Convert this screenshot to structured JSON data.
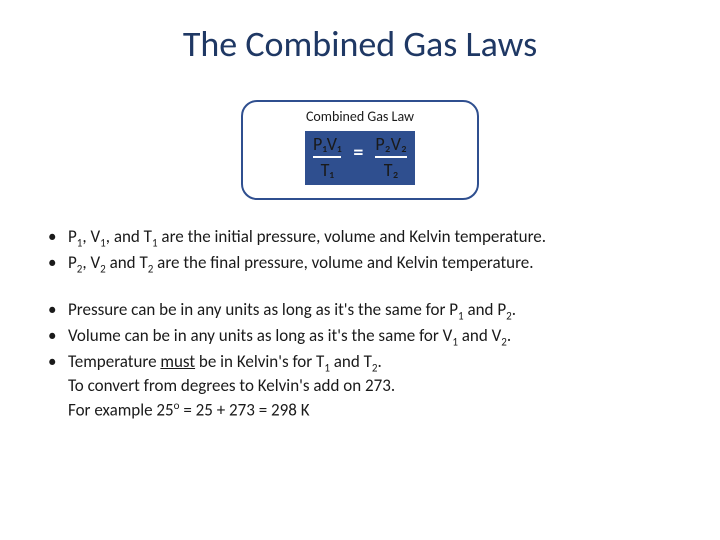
{
  "title": "The Combined Gas Laws",
  "box": {
    "label": "Combined Gas Law",
    "lhs_num": "P₁V₁",
    "lhs_den": "T₁",
    "eq": "=",
    "rhs_num": "P₂V₂",
    "rhs_den": "T₂",
    "border_color": "#2f4f8f",
    "fill_color": "#2f4f8f",
    "text_color": "#ffffff"
  },
  "group1": {
    "b1_pre": "P",
    "b1_s1": "1",
    "b1_mid1": ", V",
    "b1_s2": "1",
    "b1_mid2": ", and T",
    "b1_s3": "1",
    "b1_post": " are the initial pressure, volume and Kelvin temperature.",
    "b2_pre": "P",
    "b2_s1": "2",
    "b2_mid1": ", V",
    "b2_s2": "2",
    "b2_mid2": " and T",
    "b2_s3": "2",
    "b2_post": " are the final pressure, volume and Kelvin temperature."
  },
  "group2": {
    "b1_pre": "Pressure can be in any units as long as it's the same for P",
    "b1_s1": "1",
    "b1_mid": " and P",
    "b1_s2": "2",
    "b1_post": ".",
    "b2_pre": "Volume can be in any units as long as it's the same for V",
    "b2_s1": "1",
    "b2_mid": " and V",
    "b2_s2": "2",
    "b2_post": ".",
    "b3_pre": "Temperature ",
    "b3_u": "must",
    "b3_mid": " be in Kelvin's for T",
    "b3_s1": "1",
    "b3_mid2": " and T",
    "b3_s2": "2",
    "b3_post": ".",
    "cont1": "To convert from degrees to Kelvin's add on 273.",
    "cont2_pre": "For example 25",
    "cont2_sup": "o",
    "cont2_post": " = 25 + 273 = 298 K"
  },
  "colors": {
    "title": "#1f3864",
    "body": "#1a1a1a",
    "background": "#ffffff"
  },
  "fontsize": {
    "title": 36,
    "box_label": 14,
    "formula": 18,
    "body": 17
  }
}
